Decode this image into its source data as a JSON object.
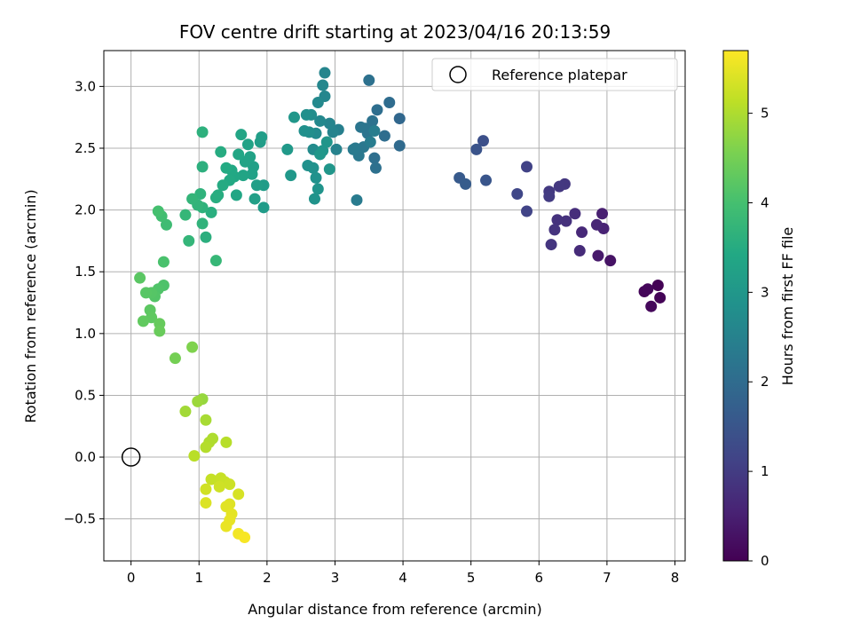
{
  "chart_data": {
    "type": "scatter",
    "title": "FOV centre drift starting at 2023/04/16 20:13:59",
    "xlabel": "Angular distance from reference (arcmin)",
    "ylabel": "Rotation from reference (arcmin)",
    "xlim": [
      -0.4,
      8.15
    ],
    "ylim": [
      -0.84,
      3.29
    ],
    "xticks": [
      "0",
      "1",
      "2",
      "3",
      "4",
      "5",
      "6",
      "7",
      "8"
    ],
    "yticks": [
      "−0.5",
      "0.0",
      "0.5",
      "1.0",
      "1.5",
      "2.0",
      "2.5",
      "3.0"
    ],
    "grid": true,
    "legend": {
      "placement": "top-right",
      "label": "Reference platepar",
      "marker": "open-circle"
    },
    "reference_point": {
      "x": 0.0,
      "y": 0.0
    },
    "colorbar": {
      "label": "Hours from first FF file",
      "range": [
        0,
        5.7
      ],
      "ticks": [
        "0",
        "1",
        "2",
        "3",
        "4",
        "5"
      ],
      "colormap": "viridis"
    },
    "points": [
      {
        "x": 7.75,
        "y": 1.39,
        "c": 0.02
      },
      {
        "x": 7.78,
        "y": 1.29,
        "c": 0.05
      },
      {
        "x": 7.55,
        "y": 1.34,
        "c": 0.08
      },
      {
        "x": 7.6,
        "y": 1.36,
        "c": 0.1
      },
      {
        "x": 7.65,
        "y": 1.22,
        "c": 0.12
      },
      {
        "x": 7.05,
        "y": 1.59,
        "c": 0.3
      },
      {
        "x": 6.87,
        "y": 1.63,
        "c": 0.4
      },
      {
        "x": 6.93,
        "y": 1.97,
        "c": 0.5
      },
      {
        "x": 6.95,
        "y": 1.85,
        "c": 0.55
      },
      {
        "x": 6.85,
        "y": 1.88,
        "c": 0.6
      },
      {
        "x": 6.63,
        "y": 1.82,
        "c": 0.65
      },
      {
        "x": 6.6,
        "y": 1.67,
        "c": 0.7
      },
      {
        "x": 6.53,
        "y": 1.97,
        "c": 0.75
      },
      {
        "x": 6.4,
        "y": 1.91,
        "c": 0.8
      },
      {
        "x": 6.27,
        "y": 1.92,
        "c": 0.82
      },
      {
        "x": 6.23,
        "y": 1.84,
        "c": 0.85
      },
      {
        "x": 6.18,
        "y": 1.72,
        "c": 0.88
      },
      {
        "x": 6.38,
        "y": 2.21,
        "c": 0.9
      },
      {
        "x": 6.3,
        "y": 2.19,
        "c": 0.92
      },
      {
        "x": 6.15,
        "y": 2.15,
        "c": 0.95
      },
      {
        "x": 6.15,
        "y": 2.11,
        "c": 0.98
      },
      {
        "x": 5.82,
        "y": 2.35,
        "c": 1.1
      },
      {
        "x": 5.82,
        "y": 1.99,
        "c": 1.15
      },
      {
        "x": 5.68,
        "y": 2.13,
        "c": 1.2
      },
      {
        "x": 5.18,
        "y": 2.56,
        "c": 1.4
      },
      {
        "x": 5.08,
        "y": 2.49,
        "c": 1.45
      },
      {
        "x": 5.22,
        "y": 2.24,
        "c": 1.5
      },
      {
        "x": 4.83,
        "y": 2.26,
        "c": 1.6
      },
      {
        "x": 4.92,
        "y": 2.21,
        "c": 1.65
      },
      {
        "x": 3.95,
        "y": 2.74,
        "c": 1.9
      },
      {
        "x": 3.95,
        "y": 2.52,
        "c": 1.95
      },
      {
        "x": 3.8,
        "y": 2.87,
        "c": 2.0
      },
      {
        "x": 3.73,
        "y": 2.6,
        "c": 2.02
      },
      {
        "x": 3.62,
        "y": 2.81,
        "c": 2.05
      },
      {
        "x": 3.58,
        "y": 2.42,
        "c": 2.08
      },
      {
        "x": 3.6,
        "y": 2.34,
        "c": 2.1
      },
      {
        "x": 3.5,
        "y": 3.05,
        "c": 2.12
      },
      {
        "x": 3.55,
        "y": 2.72,
        "c": 2.15
      },
      {
        "x": 3.45,
        "y": 2.66,
        "c": 2.18
      },
      {
        "x": 3.48,
        "y": 2.62,
        "c": 2.2
      },
      {
        "x": 3.38,
        "y": 2.67,
        "c": 2.22
      },
      {
        "x": 3.42,
        "y": 2.51,
        "c": 2.25
      },
      {
        "x": 3.35,
        "y": 2.44,
        "c": 2.28
      },
      {
        "x": 3.3,
        "y": 2.5,
        "c": 2.3
      },
      {
        "x": 3.27,
        "y": 2.49,
        "c": 2.32
      },
      {
        "x": 3.32,
        "y": 2.08,
        "c": 2.35
      },
      {
        "x": 3.52,
        "y": 2.55,
        "c": 2.38
      },
      {
        "x": 3.58,
        "y": 2.64,
        "c": 2.4
      },
      {
        "x": 3.05,
        "y": 2.65,
        "c": 2.45
      },
      {
        "x": 3.02,
        "y": 2.49,
        "c": 2.5
      },
      {
        "x": 2.97,
        "y": 2.63,
        "c": 2.52
      },
      {
        "x": 2.92,
        "y": 2.7,
        "c": 2.55
      },
      {
        "x": 2.85,
        "y": 3.11,
        "c": 2.58
      },
      {
        "x": 2.85,
        "y": 2.92,
        "c": 2.6
      },
      {
        "x": 2.82,
        "y": 3.01,
        "c": 2.62
      },
      {
        "x": 2.78,
        "y": 2.72,
        "c": 2.65
      },
      {
        "x": 2.75,
        "y": 2.87,
        "c": 2.67
      },
      {
        "x": 2.72,
        "y": 2.62,
        "c": 2.7
      },
      {
        "x": 2.68,
        "y": 2.49,
        "c": 2.72
      },
      {
        "x": 2.65,
        "y": 2.77,
        "c": 2.75
      },
      {
        "x": 2.62,
        "y": 2.63,
        "c": 2.78
      },
      {
        "x": 2.58,
        "y": 2.77,
        "c": 2.8
      },
      {
        "x": 2.55,
        "y": 2.64,
        "c": 2.82
      },
      {
        "x": 2.6,
        "y": 2.36,
        "c": 2.84
      },
      {
        "x": 2.68,
        "y": 2.34,
        "c": 2.86
      },
      {
        "x": 2.72,
        "y": 2.26,
        "c": 2.88
      },
      {
        "x": 2.7,
        "y": 2.09,
        "c": 2.9
      },
      {
        "x": 2.75,
        "y": 2.17,
        "c": 2.92
      },
      {
        "x": 2.82,
        "y": 2.48,
        "c": 2.94
      },
      {
        "x": 2.88,
        "y": 2.55,
        "c": 2.96
      },
      {
        "x": 2.92,
        "y": 2.33,
        "c": 2.98
      },
      {
        "x": 2.78,
        "y": 2.45,
        "c": 2.99
      },
      {
        "x": 2.4,
        "y": 2.75,
        "c": 3.0
      },
      {
        "x": 2.35,
        "y": 2.28,
        "c": 3.02
      },
      {
        "x": 2.3,
        "y": 2.49,
        "c": 3.05
      },
      {
        "x": 1.95,
        "y": 2.02,
        "c": 3.1
      },
      {
        "x": 1.95,
        "y": 2.2,
        "c": 3.12
      },
      {
        "x": 1.9,
        "y": 2.55,
        "c": 3.14
      },
      {
        "x": 1.92,
        "y": 2.59,
        "c": 3.16
      },
      {
        "x": 1.85,
        "y": 2.2,
        "c": 3.18
      },
      {
        "x": 1.82,
        "y": 2.09,
        "c": 3.2
      },
      {
        "x": 1.8,
        "y": 2.35,
        "c": 3.22
      },
      {
        "x": 1.78,
        "y": 2.29,
        "c": 3.24
      },
      {
        "x": 1.75,
        "y": 2.43,
        "c": 3.26
      },
      {
        "x": 1.72,
        "y": 2.53,
        "c": 3.28
      },
      {
        "x": 1.68,
        "y": 2.39,
        "c": 3.3
      },
      {
        "x": 1.65,
        "y": 2.28,
        "c": 3.32
      },
      {
        "x": 1.62,
        "y": 2.61,
        "c": 3.34
      },
      {
        "x": 1.58,
        "y": 2.45,
        "c": 3.36
      },
      {
        "x": 1.55,
        "y": 2.12,
        "c": 3.38
      },
      {
        "x": 1.52,
        "y": 2.27,
        "c": 3.4
      },
      {
        "x": 1.48,
        "y": 2.32,
        "c": 3.42
      },
      {
        "x": 1.45,
        "y": 2.24,
        "c": 3.44
      },
      {
        "x": 1.4,
        "y": 2.34,
        "c": 3.46
      },
      {
        "x": 1.35,
        "y": 2.2,
        "c": 3.48
      },
      {
        "x": 1.32,
        "y": 2.47,
        "c": 3.5
      },
      {
        "x": 1.28,
        "y": 2.12,
        "c": 3.52
      },
      {
        "x": 1.25,
        "y": 2.1,
        "c": 3.54
      },
      {
        "x": 1.18,
        "y": 1.98,
        "c": 3.56
      },
      {
        "x": 1.1,
        "y": 1.78,
        "c": 3.58
      },
      {
        "x": 1.05,
        "y": 2.35,
        "c": 3.6
      },
      {
        "x": 1.05,
        "y": 2.63,
        "c": 3.62
      },
      {
        "x": 1.05,
        "y": 2.02,
        "c": 3.64
      },
      {
        "x": 1.02,
        "y": 2.13,
        "c": 3.66
      },
      {
        "x": 1.05,
        "y": 1.89,
        "c": 3.68
      },
      {
        "x": 0.98,
        "y": 2.04,
        "c": 3.7
      },
      {
        "x": 0.9,
        "y": 2.09,
        "c": 3.72
      },
      {
        "x": 0.85,
        "y": 1.75,
        "c": 3.74
      },
      {
        "x": 0.8,
        "y": 1.96,
        "c": 3.76
      },
      {
        "x": 1.25,
        "y": 1.59,
        "c": 3.78
      },
      {
        "x": 0.52,
        "y": 1.88,
        "c": 3.9
      },
      {
        "x": 0.45,
        "y": 1.95,
        "c": 3.95
      },
      {
        "x": 0.4,
        "y": 1.99,
        "c": 4.0
      },
      {
        "x": 0.48,
        "y": 1.58,
        "c": 4.05
      },
      {
        "x": 0.48,
        "y": 1.39,
        "c": 4.1
      },
      {
        "x": 0.4,
        "y": 1.36,
        "c": 4.12
      },
      {
        "x": 0.35,
        "y": 1.3,
        "c": 4.15
      },
      {
        "x": 0.3,
        "y": 1.33,
        "c": 4.18
      },
      {
        "x": 0.22,
        "y": 1.33,
        "c": 4.2
      },
      {
        "x": 0.13,
        "y": 1.45,
        "c": 4.22
      },
      {
        "x": 0.28,
        "y": 1.19,
        "c": 4.25
      },
      {
        "x": 0.3,
        "y": 1.13,
        "c": 4.28
      },
      {
        "x": 0.18,
        "y": 1.1,
        "c": 4.3
      },
      {
        "x": 0.42,
        "y": 1.08,
        "c": 4.35
      },
      {
        "x": 0.42,
        "y": 1.02,
        "c": 4.38
      },
      {
        "x": 0.65,
        "y": 0.8,
        "c": 4.5
      },
      {
        "x": 0.9,
        "y": 0.89,
        "c": 4.6
      },
      {
        "x": 1.05,
        "y": 0.47,
        "c": 4.8
      },
      {
        "x": 0.98,
        "y": 0.45,
        "c": 4.85
      },
      {
        "x": 0.8,
        "y": 0.37,
        "c": 4.9
      },
      {
        "x": 1.1,
        "y": 0.3,
        "c": 4.95
      },
      {
        "x": 1.2,
        "y": 0.15,
        "c": 5.0
      },
      {
        "x": 1.15,
        "y": 0.12,
        "c": 5.02
      },
      {
        "x": 1.1,
        "y": 0.08,
        "c": 5.05
      },
      {
        "x": 1.4,
        "y": 0.12,
        "c": 5.08
      },
      {
        "x": 0.93,
        "y": 0.01,
        "c": 5.1
      },
      {
        "x": 1.18,
        "y": -0.18,
        "c": 5.2
      },
      {
        "x": 1.32,
        "y": -0.17,
        "c": 5.22
      },
      {
        "x": 1.38,
        "y": -0.2,
        "c": 5.24
      },
      {
        "x": 1.45,
        "y": -0.22,
        "c": 5.26
      },
      {
        "x": 1.3,
        "y": -0.24,
        "c": 5.28
      },
      {
        "x": 1.1,
        "y": -0.26,
        "c": 5.3
      },
      {
        "x": 1.58,
        "y": -0.3,
        "c": 5.35
      },
      {
        "x": 1.1,
        "y": -0.37,
        "c": 5.4
      },
      {
        "x": 1.45,
        "y": -0.38,
        "c": 5.42
      },
      {
        "x": 1.4,
        "y": -0.4,
        "c": 5.45
      },
      {
        "x": 1.48,
        "y": -0.46,
        "c": 5.48
      },
      {
        "x": 1.45,
        "y": -0.51,
        "c": 5.5
      },
      {
        "x": 1.4,
        "y": -0.56,
        "c": 5.52
      },
      {
        "x": 1.58,
        "y": -0.62,
        "c": 5.6
      },
      {
        "x": 1.67,
        "y": -0.65,
        "c": 5.65
      }
    ]
  }
}
